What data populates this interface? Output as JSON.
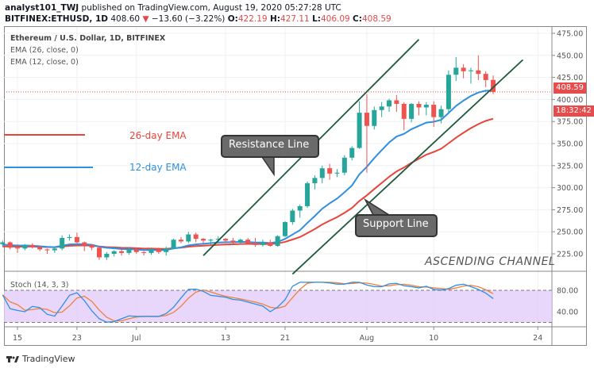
{
  "header": {
    "publisher": "analyst101_TWJ",
    "published_text": "published on TradingView.com, August 19, 2020 05:27:28 UTC",
    "symbol": "BITFINEX:ETHUSD, 1D",
    "last": "408.60",
    "change": "−13.60 (−3.22%)",
    "o_label": "O:",
    "o": "422.19",
    "h_label": "H:",
    "h": "427.11",
    "l_label": "L:",
    "l": "406.09",
    "c_label": "C:",
    "c": "408.59"
  },
  "legend": {
    "title": "Ethereum / U.S. Dollar, 1D, BITFINEX",
    "ema26": "EMA (26, close, 0)",
    "ema12": "EMA (12, close, 0)",
    "stoch": "Stoch (14, 3, 3)"
  },
  "annotations": {
    "ema26": "26-day EMA",
    "ema12": "12-day EMA",
    "resistance": "Resistance Line",
    "support": "Support Line",
    "channel": "ASCENDING CHANNEL"
  },
  "price_label": "408.59",
  "countdown": "18:32:42",
  "footer": {
    "brand": "TradingView"
  },
  "colors": {
    "up": "#26a69a",
    "down": "#ef5350",
    "ema26": "#e8443a",
    "ema12": "#2f8fe0",
    "trend": "#1e5a3c",
    "stoch_k": "#2f8fe0",
    "stoch_d": "#f0803c",
    "stoch_band": "#e3ccfa"
  },
  "chart_data": {
    "type": "candlestick",
    "start_date": "2020-06-13",
    "ohlc": [
      [
        236,
        240,
        233,
        238
      ],
      [
        238,
        239,
        230,
        232
      ],
      [
        232,
        236,
        226,
        231
      ],
      [
        231,
        236,
        229,
        235
      ],
      [
        235,
        237,
        231,
        233
      ],
      [
        233,
        234,
        228,
        230
      ],
      [
        230,
        231,
        225,
        229
      ],
      [
        229,
        232,
        226,
        231
      ],
      [
        231,
        246,
        229,
        243
      ],
      [
        243,
        247,
        240,
        244
      ],
      [
        244,
        249,
        237,
        238
      ],
      [
        238,
        239,
        228,
        235
      ],
      [
        235,
        236,
        229,
        232
      ],
      [
        232,
        234,
        218,
        221
      ],
      [
        221,
        227,
        218,
        225
      ],
      [
        225,
        229,
        222,
        228
      ],
      [
        228,
        230,
        223,
        226
      ],
      [
        226,
        232,
        224,
        230
      ],
      [
        230,
        232,
        225,
        227
      ],
      [
        227,
        228,
        223,
        226
      ],
      [
        226,
        232,
        224,
        230
      ],
      [
        230,
        232,
        225,
        227
      ],
      [
        227,
        233,
        223,
        231
      ],
      [
        231,
        242,
        230,
        241
      ],
      [
        241,
        244,
        237,
        239
      ],
      [
        239,
        250,
        237,
        247
      ],
      [
        247,
        249,
        238,
        242
      ],
      [
        242,
        243,
        237,
        240
      ],
      [
        240,
        242,
        235,
        241
      ],
      [
        241,
        245,
        238,
        242
      ],
      [
        242,
        243,
        237,
        240
      ],
      [
        240,
        243,
        236,
        238
      ],
      [
        238,
        242,
        236,
        241
      ],
      [
        241,
        243,
        236,
        237
      ],
      [
        237,
        243,
        233,
        235
      ],
      [
        235,
        241,
        233,
        238
      ],
      [
        238,
        241,
        233,
        234
      ],
      [
        234,
        246,
        233,
        245
      ],
      [
        245,
        262,
        244,
        261
      ],
      [
        261,
        276,
        258,
        274
      ],
      [
        274,
        281,
        266,
        279
      ],
      [
        279,
        307,
        277,
        305
      ],
      [
        305,
        314,
        298,
        311
      ],
      [
        311,
        325,
        305,
        322
      ],
      [
        322,
        327,
        309,
        316
      ],
      [
        316,
        321,
        312,
        317
      ],
      [
        317,
        337,
        314,
        334
      ],
      [
        334,
        347,
        331,
        345
      ],
      [
        345,
        398,
        344,
        385
      ],
      [
        385,
        406,
        317,
        370
      ],
      [
        370,
        392,
        366,
        388
      ],
      [
        388,
        397,
        380,
        392
      ],
      [
        392,
        401,
        386,
        399
      ],
      [
        399,
        405,
        386,
        395
      ],
      [
        395,
        397,
        365,
        378
      ],
      [
        378,
        396,
        374,
        395
      ],
      [
        395,
        398,
        382,
        391
      ],
      [
        391,
        397,
        382,
        394
      ],
      [
        394,
        398,
        369,
        380
      ],
      [
        380,
        393,
        373,
        389
      ],
      [
        389,
        433,
        384,
        428
      ],
      [
        428,
        448,
        421,
        436
      ],
      [
        436,
        440,
        424,
        432
      ],
      [
        432,
        436,
        418,
        433
      ],
      [
        433,
        450,
        422,
        429
      ],
      [
        429,
        432,
        414,
        422
      ],
      [
        422.19,
        427.11,
        406.09,
        408.59
      ]
    ],
    "price_axis": {
      "ticks": [
        "475.00",
        "450.00",
        "425.00",
        "400.00",
        "375.00",
        "350.00",
        "325.00",
        "300.00",
        "275.00",
        "250.00",
        "225.00"
      ],
      "range": [
        200,
        480
      ]
    },
    "time_axis": {
      "ticks": [
        "15",
        "23",
        "Jul",
        "13",
        "21",
        "Aug",
        "10",
        "24"
      ],
      "tick_dates": [
        "2020-06-15",
        "2020-06-23",
        "2020-07-01",
        "2020-07-13",
        "2020-07-21",
        "2020-08-01",
        "2020-08-10",
        "2020-08-24"
      ]
    },
    "stoch_axis": {
      "ticks": [
        "80.00",
        "40.00"
      ],
      "band": [
        20,
        80
      ]
    },
    "trendlines": {
      "resistance": [
        [
          "2020-07-10",
          223
        ],
        [
          "2020-08-08",
          468
        ]
      ],
      "support": [
        [
          "2020-07-22",
          202
        ],
        [
          "2020-08-22",
          445
        ]
      ]
    }
  }
}
